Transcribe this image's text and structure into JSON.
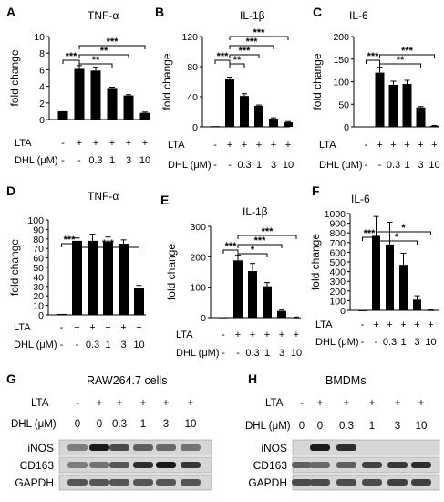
{
  "figure": {
    "conditions": {
      "lta_label": "LTA",
      "dhl_label": "DHL (μM)",
      "lta": [
        "-",
        "+",
        "+",
        "+",
        "+",
        "+"
      ],
      "dhl": [
        "-",
        "-",
        "0.3",
        "1",
        "3",
        "10"
      ]
    },
    "blot_conditions": {
      "lta": [
        "-",
        "+",
        "+",
        "+",
        "+",
        "+"
      ],
      "dhl": [
        "0",
        "0",
        "0.3",
        "1",
        "3",
        "10"
      ]
    }
  },
  "chart_data": [
    {
      "panel": "A",
      "type": "bar",
      "title": "TNF-α",
      "ylabel": "fold change",
      "ylim": [
        0,
        10
      ],
      "yticks": [
        0,
        2,
        4,
        6,
        8,
        10
      ],
      "values": [
        1,
        6.1,
        5.9,
        3.8,
        2.9,
        0.8
      ],
      "errors": [
        0,
        0.4,
        0.4,
        0.1,
        0.1,
        0.1
      ],
      "significance": [
        {
          "from": 0,
          "to": 1,
          "label": "***"
        },
        {
          "from": 1,
          "to": 3,
          "label": "**"
        },
        {
          "from": 1,
          "to": 4,
          "label": "**"
        },
        {
          "from": 1,
          "to": 5,
          "label": "***"
        }
      ]
    },
    {
      "panel": "B",
      "type": "bar",
      "title": "IL-1β",
      "ylabel": "fold change",
      "ylim": [
        0,
        120
      ],
      "yticks": [
        0,
        40,
        80,
        120
      ],
      "values": [
        1,
        63,
        41,
        28,
        11,
        6
      ],
      "errors": [
        0,
        3,
        3,
        1,
        1,
        1
      ],
      "significance": [
        {
          "from": 0,
          "to": 1,
          "label": "***"
        },
        {
          "from": 1,
          "to": 2,
          "label": "**"
        },
        {
          "from": 1,
          "to": 3,
          "label": "***"
        },
        {
          "from": 1,
          "to": 4,
          "label": "***"
        },
        {
          "from": 1,
          "to": 5,
          "label": "***"
        }
      ]
    },
    {
      "panel": "C",
      "type": "bar",
      "title": "IL-6",
      "ylabel": "fold change",
      "ylim": [
        0,
        200
      ],
      "yticks": [
        0,
        50,
        100,
        150,
        200
      ],
      "values": [
        1,
        120,
        93,
        95,
        43,
        2
      ],
      "errors": [
        0,
        12,
        8,
        8,
        2,
        1
      ],
      "significance": [
        {
          "from": 0,
          "to": 1,
          "label": "***"
        },
        {
          "from": 1,
          "to": 4,
          "label": "**"
        },
        {
          "from": 1,
          "to": 5,
          "label": "***"
        }
      ]
    },
    {
      "panel": "D",
      "type": "bar",
      "title": "TNF-α",
      "ylabel": "fold change",
      "ylim": [
        0,
        100
      ],
      "yticks": [
        0,
        10,
        20,
        30,
        40,
        50,
        60,
        70,
        80,
        90,
        100
      ],
      "values": [
        1,
        78,
        78,
        77,
        75,
        28
      ],
      "errors": [
        0,
        3,
        7,
        5,
        4,
        3
      ],
      "significance": [
        {
          "from": 0,
          "to": 1,
          "label": "***"
        },
        {
          "from": 1,
          "to": 5,
          "label": "***"
        }
      ]
    },
    {
      "panel": "E",
      "type": "bar",
      "title": "IL-1β",
      "ylabel": "fold change",
      "ylim": [
        0,
        300
      ],
      "yticks": [
        0,
        100,
        200,
        300
      ],
      "values": [
        1,
        188,
        153,
        103,
        22,
        1
      ],
      "errors": [
        0,
        17,
        25,
        12,
        3,
        1
      ],
      "significance": [
        {
          "from": 0,
          "to": 1,
          "label": "***"
        },
        {
          "from": 1,
          "to": 3,
          "label": "*"
        },
        {
          "from": 1,
          "to": 4,
          "label": "***"
        },
        {
          "from": 1,
          "to": 5,
          "label": "***"
        }
      ]
    },
    {
      "panel": "F",
      "type": "bar",
      "title": "IL-6",
      "ylabel": "fold change",
      "ylim": [
        0,
        1000
      ],
      "yticks": [
        0,
        100,
        200,
        300,
        400,
        500,
        600,
        700,
        800,
        900,
        1000
      ],
      "values": [
        1,
        770,
        680,
        470,
        110,
        3
      ],
      "errors": [
        0,
        200,
        230,
        120,
        40,
        2
      ],
      "significance": [
        {
          "from": 0,
          "to": 1,
          "label": "***"
        },
        {
          "from": 1,
          "to": 4,
          "label": "*"
        },
        {
          "from": 1,
          "to": 5,
          "label": "*"
        }
      ]
    }
  ],
  "blots": [
    {
      "panel": "G",
      "title": "RAW264.7 cells",
      "rows": [
        {
          "label": "iNOS",
          "intensity": [
            0.45,
            0.95,
            0.7,
            0.6,
            0.55,
            0.5
          ]
        },
        {
          "label": "CD163",
          "intensity": [
            0.45,
            0.5,
            0.65,
            0.85,
            0.95,
            0.8
          ]
        },
        {
          "label": "GAPDH",
          "intensity": [
            0.65,
            0.65,
            0.65,
            0.65,
            0.65,
            0.65
          ]
        }
      ]
    },
    {
      "panel": "H",
      "title": "BMDMs",
      "rows": [
        {
          "label": "iNOS",
          "intensity": [
            0.05,
            0.95,
            0.85,
            0.05,
            0.05,
            0.05
          ]
        },
        {
          "label": "CD163",
          "intensity": [
            0.6,
            0.55,
            0.6,
            0.75,
            0.8,
            0.85
          ]
        },
        {
          "label": "GAPDH",
          "intensity": [
            0.7,
            0.7,
            0.7,
            0.7,
            0.75,
            0.75
          ]
        }
      ]
    }
  ]
}
